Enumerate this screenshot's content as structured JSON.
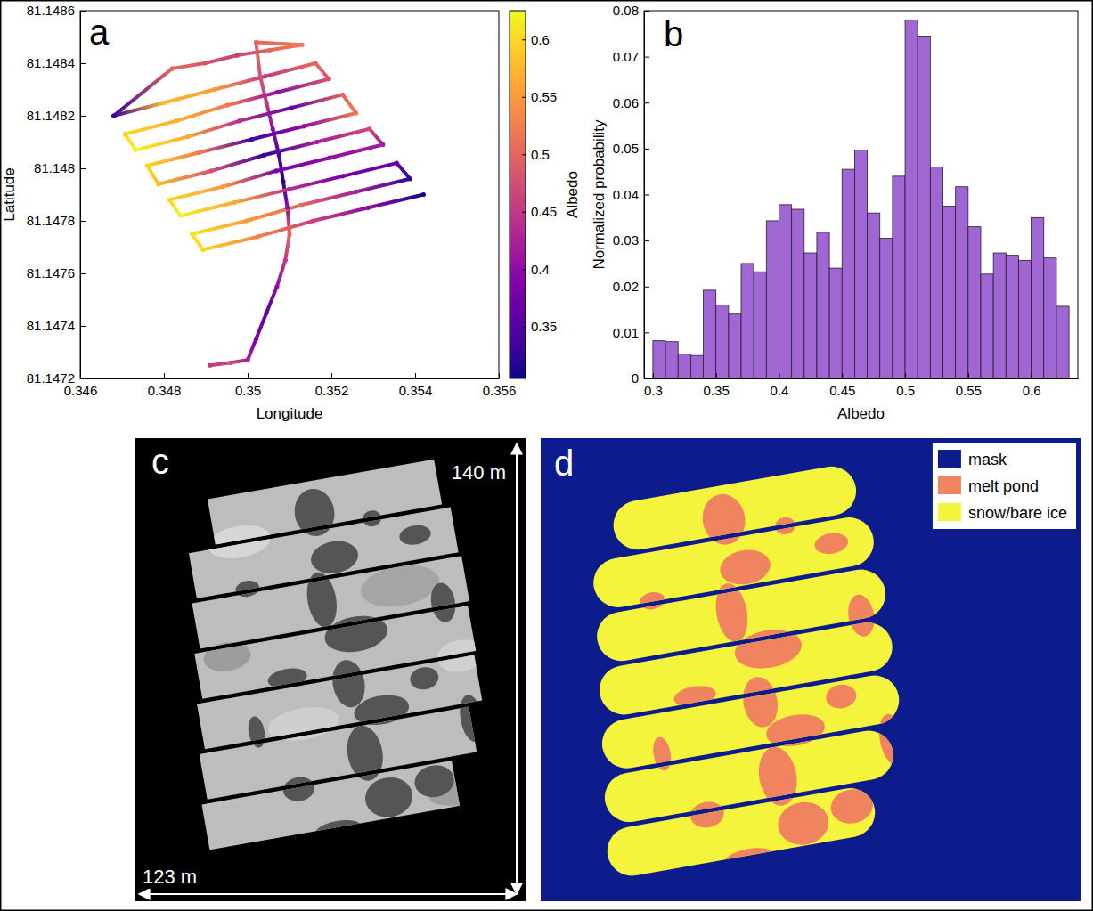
{
  "chart_data": [
    {
      "type": "line",
      "marker": "o",
      "panel_label": "a",
      "x_label": "Longitude",
      "y_label": "Latitude",
      "x": [
        0.3491,
        0.3496,
        0.35,
        0.3502,
        0.35045,
        0.3507,
        0.3509,
        0.351,
        0.35095,
        0.35085,
        0.35075,
        0.3506,
        0.35045,
        0.3503,
        0.3502,
        0.3513,
        0.35053,
        0.34975,
        0.34898,
        0.3482,
        0.3468,
        0.34801,
        0.34921,
        0.35042,
        0.35162,
        0.35194,
        0.35072,
        0.34951,
        0.34829,
        0.34707,
        0.34733,
        0.34857,
        0.3498,
        0.35104,
        0.35227,
        0.35259,
        0.35134,
        0.3501,
        0.34885,
        0.3476,
        0.34787,
        0.34913,
        0.35039,
        0.35165,
        0.35291,
        0.35323,
        0.35196,
        0.35068,
        0.34941,
        0.34813,
        0.3484,
        0.34969,
        0.35098,
        0.35227,
        0.35356,
        0.35388,
        0.35258,
        0.35128,
        0.34997,
        0.34867,
        0.34893,
        0.35025,
        0.35157,
        0.35288,
        0.3542
      ],
      "y": [
        81.14725,
        81.14726,
        81.14727,
        81.14735,
        81.14745,
        81.14755,
        81.14765,
        81.14775,
        81.14785,
        81.14795,
        81.14805,
        81.14815,
        81.14825,
        81.14835,
        81.14848,
        81.14847,
        81.14845,
        81.14843,
        81.1484,
        81.14838,
        81.1482,
        81.14825,
        81.1483,
        81.14835,
        81.1484,
        81.14834,
        81.14829,
        81.14824,
        81.14818,
        81.14813,
        81.14807,
        81.14812,
        81.14818,
        81.14823,
        81.14828,
        81.14821,
        81.14816,
        81.14811,
        81.14806,
        81.14801,
        81.14794,
        81.14799,
        81.14805,
        81.1481,
        81.14815,
        81.14809,
        81.14804,
        81.14799,
        81.14793,
        81.14788,
        81.14782,
        81.14787,
        81.14792,
        81.14797,
        81.14802,
        81.14796,
        81.14791,
        81.14786,
        81.1478,
        81.14775,
        81.14769,
        81.14774,
        81.1478,
        81.14785,
        81.1479
      ],
      "albedo": [
        0.45,
        0.47,
        0.42,
        0.38,
        0.36,
        0.4,
        0.45,
        0.5,
        0.4,
        0.32,
        0.34,
        0.4,
        0.45,
        0.48,
        0.5,
        0.52,
        0.5,
        0.46,
        0.48,
        0.5,
        0.33,
        0.58,
        0.55,
        0.45,
        0.5,
        0.48,
        0.4,
        0.52,
        0.57,
        0.6,
        0.62,
        0.56,
        0.44,
        0.36,
        0.5,
        0.52,
        0.4,
        0.34,
        0.52,
        0.6,
        0.58,
        0.48,
        0.33,
        0.42,
        0.47,
        0.42,
        0.4,
        0.38,
        0.55,
        0.6,
        0.62,
        0.56,
        0.44,
        0.38,
        0.36,
        0.33,
        0.42,
        0.5,
        0.55,
        0.61,
        0.6,
        0.53,
        0.46,
        0.4,
        0.31
      ],
      "colorbar": {
        "label": "Albedo",
        "range": [
          0.305,
          0.625
        ],
        "ticks": [
          0.35,
          0.4,
          0.45,
          0.5,
          0.55,
          0.6
        ]
      },
      "xlim": [
        0.346,
        0.356
      ],
      "xticks": [
        0.346,
        0.348,
        0.35,
        0.352,
        0.354,
        0.356
      ],
      "ylim": [
        81.1472,
        81.1486
      ],
      "yticks": [
        81.1472,
        81.1474,
        81.1476,
        81.1478,
        81.148,
        81.1482,
        81.1484,
        81.1486
      ]
    },
    {
      "type": "histogram",
      "panel_label": "b",
      "x_label": "Albedo",
      "y_label": "Normalized probability",
      "bins": [
        0.3,
        0.31,
        0.32,
        0.33,
        0.34,
        0.35,
        0.36,
        0.37,
        0.38,
        0.39,
        0.4,
        0.41,
        0.42,
        0.43,
        0.44,
        0.45,
        0.46,
        0.47,
        0.48,
        0.49,
        0.5,
        0.51,
        0.52,
        0.53,
        0.54,
        0.55,
        0.56,
        0.57,
        0.58,
        0.59,
        0.6,
        0.61,
        0.62,
        0.63
      ],
      "values": [
        0.0082,
        0.008,
        0.0053,
        0.005,
        0.0192,
        0.016,
        0.014,
        0.025,
        0.0232,
        0.0343,
        0.0378,
        0.0368,
        0.0273,
        0.0318,
        0.024,
        0.0455,
        0.0497,
        0.036,
        0.0305,
        0.044,
        0.078,
        0.0745,
        0.046,
        0.0375,
        0.0417,
        0.033,
        0.0227,
        0.0273,
        0.0268,
        0.0257,
        0.035,
        0.0262,
        0.0157
      ],
      "color": "#a066d4",
      "xlim": [
        0.293,
        0.637
      ],
      "xticks": [
        0.3,
        0.35,
        0.4,
        0.45,
        0.5,
        0.55,
        0.6
      ],
      "ylim": [
        0,
        0.08
      ],
      "yticks": [
        0,
        0.01,
        0.02,
        0.03,
        0.04,
        0.05,
        0.06,
        0.07,
        0.08
      ]
    }
  ],
  "images": [
    {
      "panel_label": "c",
      "height_label": "140 m",
      "width_label": "123 m"
    },
    {
      "panel_label": "d",
      "classes": [
        {
          "name": "mask",
          "color": "#0d1c8c"
        },
        {
          "name": "melt pond",
          "color": "#f0845e"
        },
        {
          "name": "snow/bare ice",
          "color": "#f4f43c"
        }
      ]
    }
  ]
}
